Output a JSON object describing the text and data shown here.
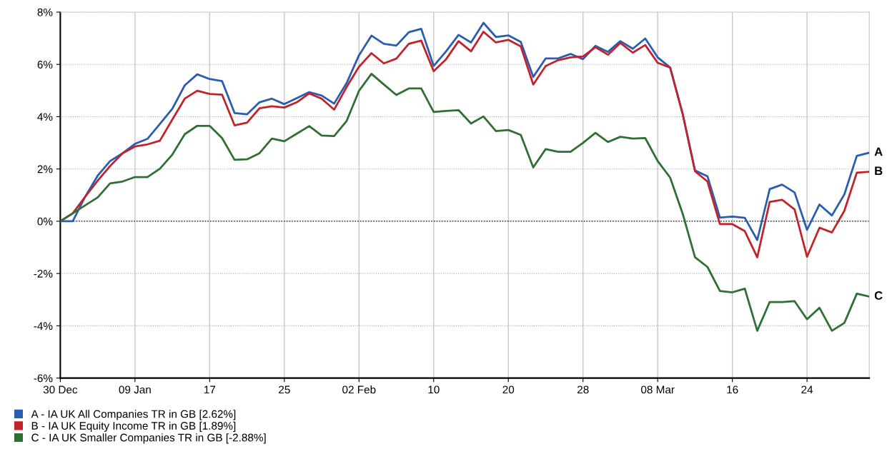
{
  "chart_data": {
    "type": "line",
    "categories": [
      "30 Dec",
      null,
      null,
      null,
      null,
      null,
      "09 Jan",
      null,
      null,
      null,
      null,
      null,
      "17",
      null,
      null,
      null,
      null,
      null,
      "25",
      null,
      null,
      null,
      null,
      null,
      "02 Feb",
      null,
      null,
      null,
      null,
      null,
      "10",
      null,
      null,
      null,
      null,
      null,
      "20",
      null,
      null,
      null,
      null,
      null,
      "28",
      null,
      null,
      null,
      null,
      null,
      "08 Mar",
      null,
      null,
      null,
      null,
      null,
      "16",
      null,
      null,
      null,
      null,
      null,
      "24",
      null,
      null,
      null,
      null,
      null
    ],
    "series": [
      {
        "name": "A - IA UK All Companies TR in GB [2.62%]",
        "color": "#2a5db0",
        "values": [
          0,
          0,
          0.94,
          1.74,
          2.3,
          2.6,
          2.96,
          3.15,
          3.72,
          4.3,
          5.2,
          5.62,
          5.44,
          5.36,
          4.14,
          4.09,
          4.55,
          4.69,
          4.48,
          4.71,
          4.94,
          4.81,
          4.5,
          5.28,
          6.35,
          7.1,
          6.79,
          6.72,
          7.23,
          7.36,
          5.94,
          6.5,
          7.13,
          6.84,
          7.59,
          7.05,
          7.11,
          6.86,
          5.52,
          6.23,
          6.23,
          6.4,
          6.2,
          6.71,
          6.48,
          6.89,
          6.6,
          6.99,
          6.27,
          5.88,
          4.12,
          1.94,
          1.72,
          0.14,
          0.18,
          0.13,
          -0.72,
          1.23,
          1.4,
          1.1,
          -0.33,
          0.64,
          0.22,
          1.03,
          2.5,
          2.62
        ]
      },
      {
        "name": "B - IA UK Equity Income TR in GB [1.89%]",
        "color": "#c0232b",
        "values": [
          0,
          0.3,
          0.94,
          1.55,
          2.11,
          2.6,
          2.86,
          2.94,
          3.08,
          3.89,
          4.69,
          4.99,
          4.87,
          4.84,
          3.67,
          3.77,
          4.32,
          4.4,
          4.35,
          4.55,
          4.89,
          4.69,
          4.27,
          5.13,
          5.91,
          6.43,
          6.04,
          6.22,
          6.79,
          6.91,
          5.74,
          6.2,
          6.89,
          6.5,
          7.25,
          6.84,
          6.94,
          6.69,
          5.23,
          5.94,
          6.16,
          6.27,
          6.3,
          6.66,
          6.37,
          6.82,
          6.45,
          6.74,
          6.06,
          5.88,
          4.12,
          1.91,
          1.52,
          -0.11,
          -0.11,
          -0.38,
          -1.38,
          0.74,
          0.82,
          0.45,
          -1.36,
          -0.25,
          -0.43,
          0.4,
          1.86,
          1.89
        ]
      },
      {
        "name": "C - IA UK Smaller Companies TR in GB [-2.88%]",
        "color": "#2e7034",
        "values": [
          0,
          0.3,
          0.61,
          0.91,
          1.45,
          1.52,
          1.69,
          1.69,
          2.01,
          2.55,
          3.33,
          3.65,
          3.65,
          3.18,
          2.35,
          2.37,
          2.6,
          3.16,
          3.06,
          3.35,
          3.64,
          3.28,
          3.26,
          3.83,
          4.99,
          5.64,
          5.23,
          4.83,
          5.08,
          5.08,
          4.18,
          4.22,
          4.25,
          3.74,
          4.01,
          3.45,
          3.49,
          3.3,
          2.06,
          2.76,
          2.66,
          2.66,
          3.0,
          3.38,
          3.03,
          3.23,
          3.16,
          3.18,
          2.3,
          1.67,
          0.3,
          -1.38,
          -1.75,
          -2.67,
          -2.72,
          -2.58,
          -4.19,
          -3.09,
          -3.09,
          -3.06,
          -3.75,
          -3.31,
          -4.19,
          -3.89,
          -2.77,
          -2.88
        ]
      }
    ],
    "ylim": [
      -6,
      8
    ],
    "yticks": [
      {
        "value": -6,
        "label": "-6%"
      },
      {
        "value": -4,
        "label": "-4%"
      },
      {
        "value": -2,
        "label": "-2%"
      },
      {
        "value": 0,
        "label": "0%"
      },
      {
        "value": 2,
        "label": "2%"
      },
      {
        "value": 4,
        "label": "4%"
      },
      {
        "value": 6,
        "label": "6%"
      },
      {
        "value": 8,
        "label": "8%"
      }
    ],
    "grid": true,
    "legend": "bottom left",
    "marker": "none",
    "line_style": "solid",
    "ref_lines": [
      {
        "axis": "y",
        "value": 0,
        "color": "#000000",
        "line_style": "dotted"
      }
    ],
    "annotations": [
      "A",
      "B",
      "C"
    ]
  }
}
